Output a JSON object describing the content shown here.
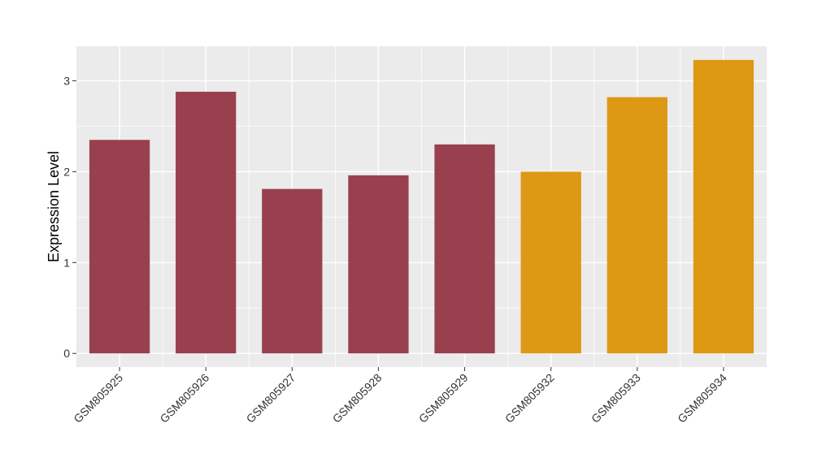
{
  "chart_data": {
    "type": "bar",
    "title": "",
    "xlabel": "",
    "ylabel": "Expression Level",
    "categories": [
      "GSM805925",
      "GSM805926",
      "GSM805927",
      "GSM805928",
      "GSM805929",
      "GSM805932",
      "GSM805933",
      "GSM805934"
    ],
    "values": [
      2.35,
      2.88,
      1.81,
      1.96,
      2.3,
      2.0,
      2.82,
      3.23
    ],
    "bar_colors": [
      "#99404f",
      "#99404f",
      "#99404f",
      "#99404f",
      "#99404f",
      "#dd9914",
      "#dd9914",
      "#dd9914"
    ],
    "ylim": [
      -0.15,
      3.38
    ],
    "yticks": [
      0,
      1,
      2,
      3
    ],
    "grid": true,
    "panel_background": "#ebebeb",
    "gridline_color": "#ffffff",
    "legend": "none"
  }
}
